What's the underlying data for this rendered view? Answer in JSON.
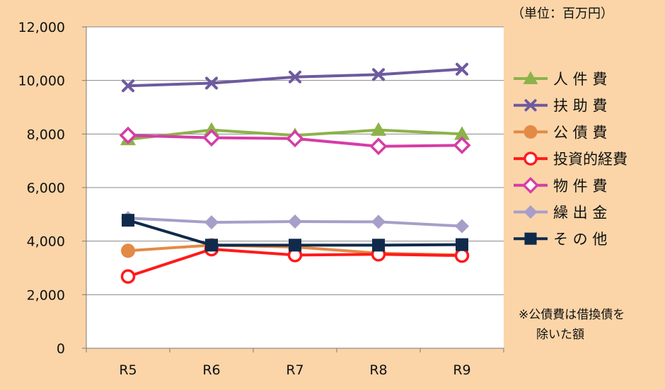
{
  "chart_data": {
    "type": "line",
    "unit_label": "（単位：百万円）",
    "categories": [
      "R5",
      "R6",
      "R7",
      "R8",
      "R9"
    ],
    "ylim": [
      0,
      12000
    ],
    "yticks": [
      0,
      2000,
      4000,
      6000,
      8000,
      10000,
      12000
    ],
    "ytick_labels": [
      "0",
      "2,000",
      "4,000",
      "6,000",
      "8,000",
      "10,000",
      "12,000"
    ],
    "grid": "horizontal",
    "legend_placement": "right",
    "series": [
      {
        "name": "人 件 費",
        "color": "#8db24a",
        "marker": "triangle",
        "values": [
          7800,
          8150,
          7950,
          8150,
          8000
        ]
      },
      {
        "name": "扶 助 費",
        "color": "#6e5a9e",
        "marker": "x",
        "values": [
          9800,
          9900,
          10130,
          10220,
          10420
        ]
      },
      {
        "name": "公 債 費",
        "color": "#e38a44",
        "marker": "circle",
        "values": [
          3640,
          3850,
          3780,
          3550,
          3480
        ]
      },
      {
        "name": "投資的経費",
        "color": "#ff1a1a",
        "marker": "circle-open",
        "values": [
          2680,
          3700,
          3480,
          3510,
          3460
        ]
      },
      {
        "name": "物 件 費",
        "color": "#d63ca6",
        "marker": "diamond-open",
        "values": [
          7950,
          7860,
          7830,
          7540,
          7580
        ]
      },
      {
        "name": "繰 出 金",
        "color": "#a79ec9",
        "marker": "diamond",
        "values": [
          4860,
          4700,
          4730,
          4720,
          4560
        ]
      },
      {
        "name": "そ の 他",
        "color": "#102a4c",
        "marker": "square",
        "values": [
          4780,
          3850,
          3850,
          3850,
          3870
        ]
      }
    ],
    "note_lines": [
      "※公債費は借換債を",
      "除いた額"
    ]
  }
}
